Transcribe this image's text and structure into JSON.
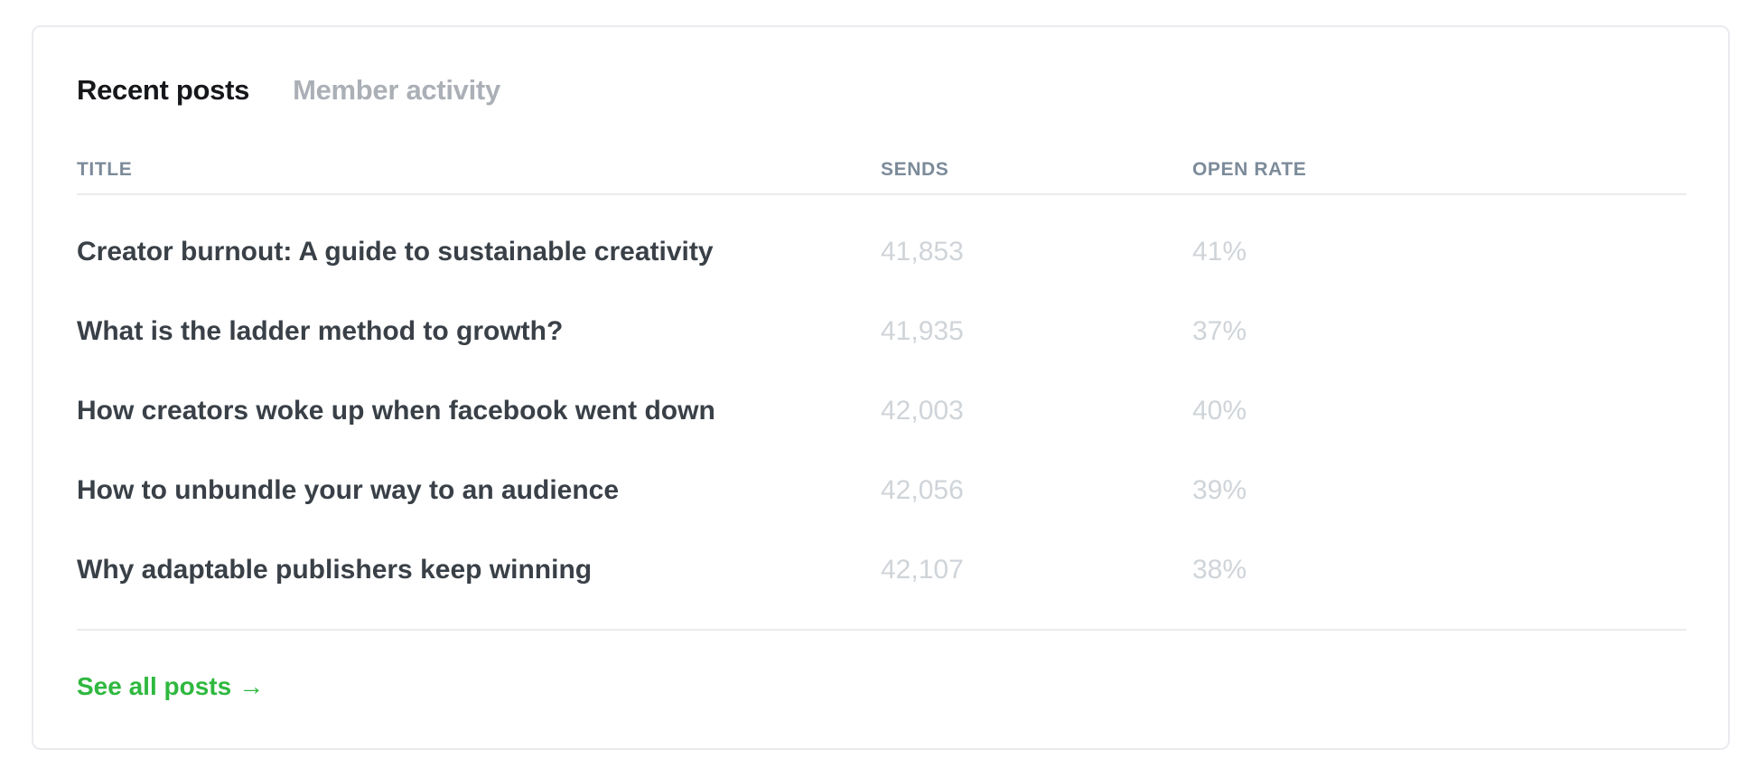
{
  "tabs": [
    {
      "label": "Recent posts",
      "active": true
    },
    {
      "label": "Member activity",
      "active": false
    }
  ],
  "table": {
    "columns": [
      "TITLE",
      "SENDS",
      "OPEN RATE"
    ],
    "rows": [
      {
        "title": "Creator burnout: A guide to sustainable creativity",
        "sends": "41,853",
        "open_rate": "41%"
      },
      {
        "title": "What is the ladder method to growth?",
        "sends": "41,935",
        "open_rate": "37%"
      },
      {
        "title": "How creators woke up when facebook went down",
        "sends": "42,003",
        "open_rate": "40%"
      },
      {
        "title": "How to unbundle your way to an audience",
        "sends": "42,056",
        "open_rate": "39%"
      },
      {
        "title": "Why adaptable publishers keep winning",
        "sends": "42,107",
        "open_rate": "38%"
      }
    ]
  },
  "footer": {
    "link_label": "See all posts",
    "link_icon": "arrow-right-icon"
  },
  "colors": {
    "accent": "#2fb83f",
    "title_text": "#394047",
    "muted_number": "#cfd4d9",
    "header_text": "#7c8b9a",
    "tab_active": "#15171a",
    "tab_inactive": "#abb0b7",
    "border": "#e9ebee"
  }
}
